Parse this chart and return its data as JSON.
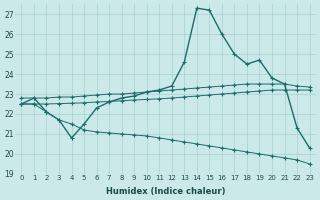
{
  "xlabel": "Humidex (Indice chaleur)",
  "bg_color": "#cce9e9",
  "grid_color": "#a8d0d0",
  "line_color": "#1a6b6b",
  "xlim": [
    -0.5,
    23.5
  ],
  "ylim": [
    19,
    27.5
  ],
  "yticks": [
    19,
    20,
    21,
    22,
    23,
    24,
    25,
    26,
    27
  ],
  "xticks": [
    0,
    1,
    2,
    3,
    4,
    5,
    6,
    7,
    8,
    9,
    10,
    11,
    12,
    13,
    14,
    15,
    16,
    17,
    18,
    19,
    20,
    21,
    22,
    23
  ],
  "line1_x": [
    0,
    1,
    2,
    3,
    4,
    5,
    6,
    7,
    8,
    9,
    10,
    11,
    12,
    13,
    14,
    15,
    16,
    17,
    18,
    19,
    20,
    21,
    22,
    23
  ],
  "line1_y": [
    22.5,
    22.8,
    22.1,
    21.7,
    20.8,
    21.5,
    22.3,
    22.6,
    22.8,
    22.9,
    23.1,
    23.2,
    23.4,
    24.6,
    27.3,
    27.2,
    26.0,
    25.0,
    24.5,
    24.7,
    23.8,
    23.5,
    21.3,
    20.3
  ],
  "line2_x": [
    0,
    1,
    2,
    3,
    4,
    5,
    6,
    7,
    8,
    9,
    10,
    11,
    12,
    13,
    14,
    15,
    16,
    17,
    18,
    19,
    20,
    21,
    22,
    23
  ],
  "line2_y": [
    22.8,
    22.8,
    22.8,
    22.85,
    22.85,
    22.9,
    22.95,
    23.0,
    23.0,
    23.05,
    23.1,
    23.15,
    23.2,
    23.25,
    23.3,
    23.35,
    23.4,
    23.45,
    23.5,
    23.5,
    23.5,
    23.5,
    23.4,
    23.35
  ],
  "line3_x": [
    0,
    1,
    2,
    3,
    4,
    5,
    6,
    7,
    8,
    9,
    10,
    11,
    12,
    13,
    14,
    15,
    16,
    17,
    18,
    19,
    20,
    21,
    22,
    23
  ],
  "line3_y": [
    22.5,
    22.5,
    22.5,
    22.52,
    22.54,
    22.56,
    22.6,
    22.63,
    22.66,
    22.7,
    22.73,
    22.76,
    22.8,
    22.85,
    22.9,
    22.95,
    23.0,
    23.05,
    23.1,
    23.15,
    23.2,
    23.2,
    23.2,
    23.2
  ],
  "line4_x": [
    0,
    1,
    2,
    3,
    4,
    5,
    6,
    7,
    8,
    9,
    10,
    11,
    12,
    13,
    14,
    15,
    16,
    17,
    18,
    19,
    20,
    21,
    22,
    23
  ],
  "line4_y": [
    22.5,
    22.5,
    22.1,
    21.7,
    21.5,
    21.2,
    21.1,
    21.05,
    21.0,
    20.95,
    20.9,
    20.8,
    20.7,
    20.6,
    20.5,
    20.4,
    20.3,
    20.2,
    20.1,
    20.0,
    19.9,
    19.8,
    19.7,
    19.5
  ]
}
